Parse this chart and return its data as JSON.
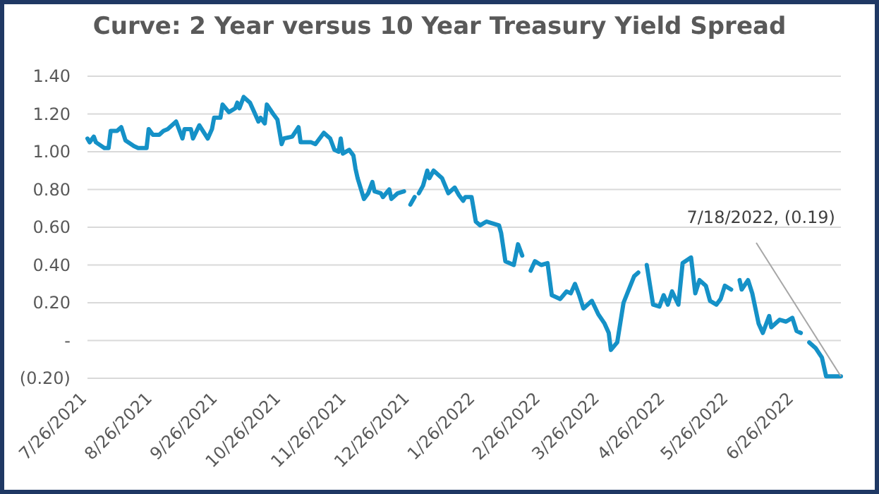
{
  "chart_data": {
    "type": "line",
    "title": "Curve: 2 Year versus 10 Year Treasury Yield Spread",
    "x": [
      "2021-07-26",
      "2021-07-27",
      "2021-07-29",
      "2021-07-30",
      "2021-08-03",
      "2021-08-05",
      "2021-08-06",
      "2021-08-09",
      "2021-08-11",
      "2021-08-13",
      "2021-08-17",
      "2021-08-19",
      "2021-08-23",
      "2021-08-24",
      "2021-08-26",
      "2021-08-29",
      "2021-08-31",
      "2021-09-02",
      "2021-09-06",
      "2021-09-09",
      "2021-09-10",
      "2021-09-13",
      "2021-09-14",
      "2021-09-17",
      "2021-09-21",
      "2021-09-23",
      "2021-09-24",
      "2021-09-27",
      "2021-09-28",
      "2021-10-01",
      "2021-10-04",
      "2021-10-05",
      "2021-10-06",
      "2021-10-08",
      "2021-10-11",
      "2021-10-13",
      "2021-10-15",
      "2021-10-16",
      "2021-10-18",
      "2021-10-19",
      "2021-10-22",
      "2021-10-24",
      "2021-10-26",
      "2021-10-27",
      "2021-10-31",
      "2021-11-03",
      "2021-11-04",
      "2021-11-09",
      "2021-11-11",
      "2021-11-15",
      "2021-11-18",
      "2021-11-20",
      "2021-11-22",
      "2021-11-23",
      "2021-11-24",
      "2021-11-27",
      "2021-11-29",
      "2021-11-30",
      "2021-12-01",
      "2021-12-04",
      "2021-12-06",
      "2021-12-08",
      "2021-12-09",
      "2021-12-12",
      "2021-12-13",
      "2021-12-16",
      "2021-12-17",
      "2021-12-20",
      "2021-12-23",
      "2021-12-24",
      "2021-12-26",
      "2021-12-28",
      "2021-12-29",
      "2021-12-30",
      "2022-01-01",
      "2022-01-03",
      "2022-01-04",
      "2022-01-06",
      "2022-01-10",
      "2022-01-13",
      "2022-01-16",
      "2022-01-18",
      "2022-01-20",
      "2022-01-21",
      "2022-01-24",
      "2022-01-26",
      "2022-01-28",
      "2022-01-31",
      "2022-02-03",
      "2022-02-06",
      "2022-02-07",
      "2022-02-09",
      "2022-02-13",
      "2022-02-15",
      "2022-02-17",
      "2022-02-18",
      "2022-02-21",
      "2022-02-23",
      "2022-02-26",
      "2022-03-01",
      "2022-03-03",
      "2022-03-07",
      "2022-03-10",
      "2022-03-12",
      "2022-03-14",
      "2022-03-16",
      "2022-03-18",
      "2022-03-22",
      "2022-03-25",
      "2022-03-28",
      "2022-03-30",
      "2022-03-31",
      "2022-04-03",
      "2022-04-06",
      "2022-04-11",
      "2022-04-13",
      "2022-04-14",
      "2022-04-17",
      "2022-04-20",
      "2022-04-23",
      "2022-04-25",
      "2022-04-27",
      "2022-04-29",
      "2022-05-02",
      "2022-05-04",
      "2022-05-08",
      "2022-05-10",
      "2022-05-12",
      "2022-05-15",
      "2022-05-17",
      "2022-05-20",
      "2022-05-22",
      "2022-05-24",
      "2022-05-27",
      "2022-05-29",
      "2022-05-31",
      "2022-06-01",
      "2022-06-04",
      "2022-06-06",
      "2022-06-09",
      "2022-06-11",
      "2022-06-14",
      "2022-06-15",
      "2022-06-19",
      "2022-06-22",
      "2022-06-25",
      "2022-06-27",
      "2022-06-29",
      "2022-06-30",
      "2022-07-03",
      "2022-07-06",
      "2022-07-09",
      "2022-07-11",
      "2022-07-18"
    ],
    "series": [
      {
        "color": "#1591c7",
        "values": [
          1.07,
          1.05,
          1.08,
          1.05,
          1.02,
          1.02,
          1.11,
          1.11,
          1.13,
          1.06,
          1.03,
          1.02,
          1.02,
          1.12,
          1.09,
          1.09,
          1.11,
          1.12,
          1.16,
          1.07,
          1.12,
          1.12,
          1.07,
          1.14,
          1.07,
          1.12,
          1.18,
          1.18,
          1.25,
          1.21,
          1.23,
          1.26,
          1.23,
          1.29,
          1.26,
          1.21,
          1.16,
          1.18,
          1.15,
          1.25,
          1.2,
          1.17,
          1.04,
          1.07,
          1.08,
          1.13,
          1.05,
          1.05,
          1.04,
          1.1,
          1.07,
          1.01,
          1.0,
          1.07,
          0.99,
          1.01,
          0.98,
          0.91,
          0.86,
          0.75,
          0.78,
          0.84,
          0.79,
          0.78,
          0.76,
          0.8,
          0.75,
          0.78,
          0.79,
          null,
          0.72,
          0.76,
          null,
          0.78,
          0.82,
          0.9,
          0.86,
          0.9,
          0.86,
          0.78,
          0.81,
          0.77,
          0.74,
          0.76,
          0.76,
          0.63,
          0.61,
          0.63,
          0.62,
          0.61,
          0.57,
          0.42,
          0.4,
          0.51,
          0.45,
          null,
          0.37,
          0.42,
          0.4,
          0.41,
          0.24,
          0.22,
          0.26,
          0.25,
          0.3,
          0.24,
          0.17,
          0.21,
          0.14,
          0.09,
          0.04,
          -0.05,
          -0.01,
          0.2,
          0.34,
          0.36,
          null,
          0.4,
          0.19,
          0.18,
          0.24,
          0.19,
          0.26,
          0.19,
          0.41,
          0.44,
          0.25,
          0.32,
          0.29,
          0.21,
          0.19,
          0.22,
          0.29,
          0.27,
          null,
          0.32,
          0.27,
          0.32,
          0.25,
          0.09,
          0.04,
          0.13,
          0.07,
          0.11,
          0.1,
          0.12,
          0.05,
          0.04,
          null,
          -0.01,
          -0.04,
          -0.09,
          -0.19,
          -0.19
        ]
      }
    ],
    "xlim": [
      "2021-07-26",
      "2022-07-18"
    ],
    "xticks": [
      {
        "value": "2021-07-26",
        "label": "7/26/2021"
      },
      {
        "value": "2021-08-26",
        "label": "8/26/2021"
      },
      {
        "value": "2021-09-26",
        "label": "9/26/2021"
      },
      {
        "value": "2021-10-26",
        "label": "10/26/2021"
      },
      {
        "value": "2021-11-26",
        "label": "11/26/2021"
      },
      {
        "value": "2021-12-26",
        "label": "12/26/2021"
      },
      {
        "value": "2022-01-26",
        "label": "1/26/2022"
      },
      {
        "value": "2022-02-26",
        "label": "2/26/2022"
      },
      {
        "value": "2022-03-26",
        "label": "3/26/2022"
      },
      {
        "value": "2022-04-26",
        "label": "4/26/2022"
      },
      {
        "value": "2022-05-26",
        "label": "5/26/2022"
      },
      {
        "value": "2022-06-26",
        "label": "6/26/2022"
      }
    ],
    "ylim": [
      -0.2,
      1.4
    ],
    "yticks": [
      {
        "value": -0.2,
        "label": "(0.20)"
      },
      {
        "value": 0,
        "label": "-"
      },
      {
        "value": 0.2,
        "label": "0.20"
      },
      {
        "value": 0.4,
        "label": "0.40"
      },
      {
        "value": 0.6,
        "label": "0.60"
      },
      {
        "value": 0.8,
        "label": "0.80"
      },
      {
        "value": 1.0,
        "label": "1.00"
      },
      {
        "value": 1.2,
        "label": "1.20"
      },
      {
        "value": 1.4,
        "label": "1.40"
      }
    ],
    "grid": "y",
    "marker": "none",
    "line_style": "solid",
    "annotations": [
      {
        "text": "7/18/2022,  (0.19)",
        "x": "2022-07-18",
        "y": -0.19
      }
    ]
  }
}
